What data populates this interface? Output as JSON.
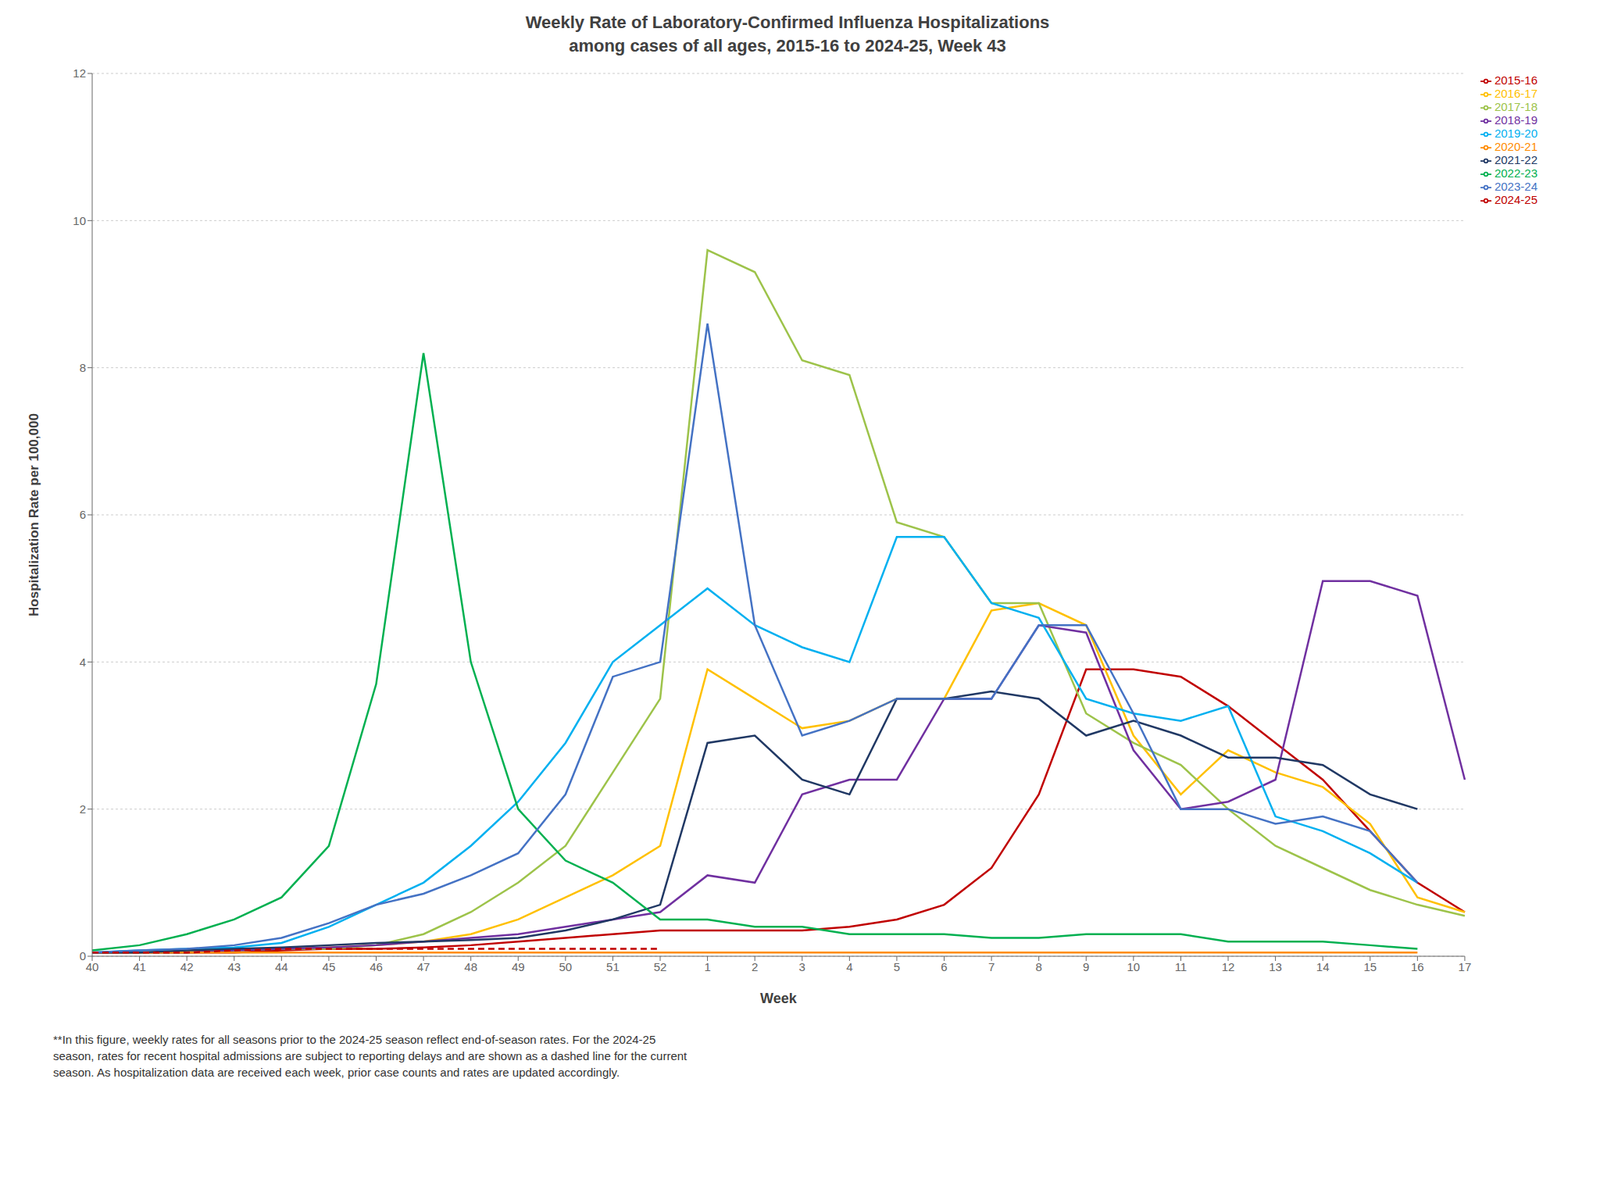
{
  "chart_data": {
    "type": "line",
    "title": "Weekly Rate of Laboratory-Confirmed Influenza Hospitalizations",
    "subtitle": "among cases of all ages, 2015-16 to 2024-25, Week 43",
    "x_label": "Week",
    "y_label": "Hospitalization Rate per 100,000",
    "annotations": [
      "**In this figure, weekly rates for all seasons prior to the 2024-25 season reflect end-of-season rates. For the 2024-25\nseason, rates for recent hospital admissions are subject to reporting delays and are shown as a dashed line for the current\nseason. As hospitalization data are received each week, prior case counts and rates are updated accordingly."
    ],
    "categories": [
      "40",
      "41",
      "42",
      "43",
      "44",
      "45",
      "46",
      "47",
      "48",
      "49",
      "50",
      "51",
      "52",
      "1",
      "2",
      "3",
      "4",
      "5",
      "6",
      "7",
      "8",
      "9",
      "10",
      "11",
      "12",
      "13",
      "14",
      "15",
      "16",
      "17"
    ],
    "ylim": [
      0,
      12
    ],
    "yticks": [
      0,
      2,
      4,
      6,
      8,
      10,
      12
    ],
    "grid": true,
    "legend": "upper right",
    "series": [
      {
        "name": "2015-16",
        "color": "#c00000",
        "line_style": "solid",
        "values": [
          0.05,
          0.05,
          0.05,
          0.05,
          0.08,
          0.1,
          0.1,
          0.12,
          0.15,
          0.2,
          0.25,
          0.3,
          0.35,
          0.35,
          0.35,
          0.35,
          0.4,
          0.5,
          0.7,
          1.2,
          2.2,
          3.9,
          3.9,
          3.8,
          3.4,
          2.9,
          2.4,
          1.7,
          1.0,
          0.6
        ]
      },
      {
        "name": "2016-17",
        "color": "#ffc000",
        "line_style": "solid",
        "values": [
          0.05,
          0.05,
          0.08,
          0.1,
          0.1,
          0.12,
          0.15,
          0.2,
          0.3,
          0.5,
          0.8,
          1.1,
          1.5,
          3.9,
          3.5,
          3.1,
          3.2,
          3.5,
          3.5,
          4.7,
          4.8,
          4.5,
          3.0,
          2.2,
          2.8,
          2.5,
          2.3,
          1.8,
          0.8,
          0.6
        ]
      },
      {
        "name": "2017-18",
        "color": "#9dc34a",
        "line_style": "solid",
        "values": [
          0.05,
          0.05,
          0.05,
          0.08,
          0.1,
          0.1,
          0.15,
          0.3,
          0.6,
          1.0,
          1.5,
          2.5,
          3.5,
          9.6,
          9.3,
          8.1,
          7.9,
          5.9,
          5.7,
          4.8,
          4.8,
          3.3,
          2.9,
          2.6,
          2.0,
          1.5,
          1.2,
          0.9,
          0.7,
          0.55
        ]
      },
      {
        "name": "2018-19",
        "color": "#7030a0",
        "line_style": "solid",
        "values": [
          0.05,
          0.05,
          0.05,
          0.08,
          0.1,
          0.12,
          0.15,
          0.2,
          0.25,
          0.3,
          0.4,
          0.5,
          0.6,
          1.1,
          1.0,
          2.2,
          2.4,
          2.4,
          3.5,
          3.5,
          4.5,
          4.4,
          2.8,
          2.0,
          2.1,
          2.4,
          5.1,
          5.1,
          4.9,
          2.4
        ]
      },
      {
        "name": "2019-20",
        "color": "#00b0f0",
        "line_style": "solid",
        "values": [
          0.05,
          0.08,
          0.1,
          0.12,
          0.18,
          0.4,
          0.7,
          1.0,
          1.5,
          2.1,
          2.9,
          4.0,
          4.5,
          5.0,
          4.5,
          4.2,
          4.0,
          5.7,
          5.7,
          4.8,
          4.6,
          3.5,
          3.3,
          3.2,
          3.4,
          1.9,
          1.7,
          1.4,
          1.0,
          null
        ]
      },
      {
        "name": "2020-21",
        "color": "#ff8c00",
        "line_style": "solid",
        "values": [
          0.05,
          0.05,
          0.05,
          0.05,
          0.05,
          0.05,
          0.05,
          0.05,
          0.05,
          0.05,
          0.05,
          0.05,
          0.05,
          0.05,
          0.05,
          0.05,
          0.05,
          0.05,
          0.05,
          0.05,
          0.05,
          0.05,
          0.05,
          0.05,
          0.05,
          0.05,
          0.05,
          0.05,
          0.05,
          null
        ]
      },
      {
        "name": "2021-22",
        "color": "#203864",
        "line_style": "solid",
        "values": [
          0.05,
          0.05,
          0.08,
          0.1,
          0.12,
          0.15,
          0.18,
          0.2,
          0.22,
          0.25,
          0.35,
          0.5,
          0.7,
          2.9,
          3.0,
          2.4,
          2.2,
          3.5,
          3.5,
          3.6,
          3.5,
          3.0,
          3.2,
          3.0,
          2.7,
          2.7,
          2.6,
          2.2,
          2.0,
          null
        ]
      },
      {
        "name": "2022-23",
        "color": "#00b050",
        "line_style": "solid",
        "values": [
          0.08,
          0.15,
          0.3,
          0.5,
          0.8,
          1.5,
          3.7,
          8.2,
          4.0,
          2.0,
          1.3,
          1.0,
          0.5,
          0.5,
          0.4,
          0.4,
          0.3,
          0.3,
          0.3,
          0.25,
          0.25,
          0.3,
          0.3,
          0.3,
          0.2,
          0.2,
          0.2,
          0.15,
          0.1,
          null
        ]
      },
      {
        "name": "2023-24",
        "color": "#4472c4",
        "line_style": "solid",
        "values": [
          0.05,
          0.08,
          0.1,
          0.15,
          0.25,
          0.45,
          0.7,
          0.85,
          1.1,
          1.4,
          2.2,
          3.8,
          4.0,
          8.6,
          4.5,
          3.0,
          3.2,
          3.5,
          3.5,
          3.5,
          4.5,
          4.5,
          3.3,
          2.0,
          2.0,
          1.8,
          1.9,
          1.7,
          1.0,
          null
        ]
      },
      {
        "name": "2024-25",
        "color": "#c00000",
        "line_style": "dashed",
        "values": [
          0.05,
          0.05,
          0.05,
          0.08,
          0.1,
          0.1,
          0.1,
          0.1,
          0.1,
          0.1,
          0.1,
          0.1,
          0.1,
          null,
          null,
          null,
          null,
          null,
          null,
          null,
          null,
          null,
          null,
          null,
          null,
          null,
          null,
          null,
          null,
          null
        ]
      }
    ]
  }
}
